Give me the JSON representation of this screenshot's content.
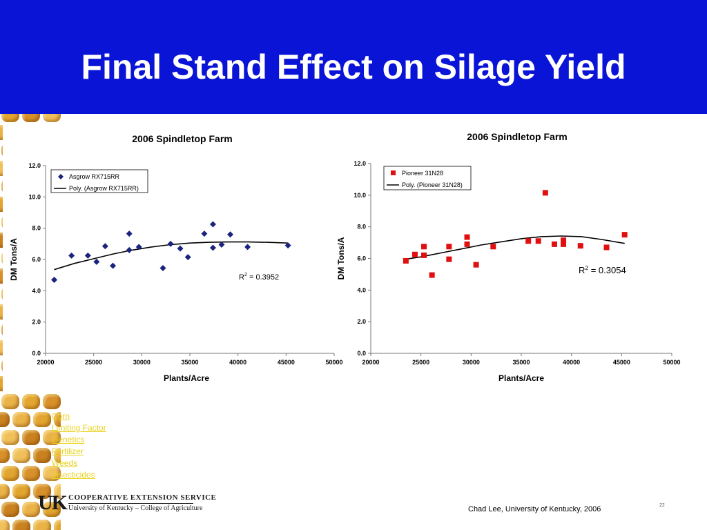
{
  "slide": {
    "title": "Final Stand Effect on Silage Yield",
    "credit": "Chad Lee, University of Kentucky, 2006",
    "page_number": "22",
    "header_color": "#0a14d6"
  },
  "nav": {
    "links": [
      "Corn",
      "Limiting Factor",
      "Genetics",
      "Fertilizer",
      "Weeds",
      "Insecticides"
    ],
    "link_color": "#e8d21a"
  },
  "logo": {
    "mark": "UK",
    "line1": "COOPERATIVE EXTENSION SERVICE",
    "line2": "University of Kentucky – College of Agriculture"
  },
  "chart_data": [
    {
      "type": "scatter",
      "title": "2006 Spindletop Farm",
      "xlabel": "Plants/Acre",
      "ylabel": "DM Tons/A",
      "xlim": [
        20000,
        50000
      ],
      "ylim": [
        0,
        12
      ],
      "x_ticks": [
        "20000",
        "25000",
        "30000",
        "35000",
        "40000",
        "45000",
        "50000"
      ],
      "y_ticks": [
        "0.0",
        "2.0",
        "4.0",
        "6.0",
        "8.0",
        "10.0",
        "12.0"
      ],
      "grid": false,
      "legend_position": "top-left",
      "r2_label": "R",
      "r2_sup": "2",
      "r2_value": " = 0.3952",
      "series": [
        {
          "name": "Asgrow RX715RR",
          "marker": "diamond",
          "color": "#1a237e",
          "points": [
            [
              20900,
              4.7
            ],
            [
              22700,
              6.25
            ],
            [
              24400,
              6.25
            ],
            [
              25300,
              5.85
            ],
            [
              26200,
              6.85
            ],
            [
              27000,
              5.6
            ],
            [
              28700,
              7.65
            ],
            [
              28700,
              6.6
            ],
            [
              29700,
              6.8
            ],
            [
              32200,
              5.45
            ],
            [
              33000,
              7.0
            ],
            [
              34000,
              6.7
            ],
            [
              34800,
              6.15
            ],
            [
              36500,
              7.65
            ],
            [
              37400,
              8.25
            ],
            [
              37400,
              6.75
            ],
            [
              38300,
              6.95
            ],
            [
              39200,
              7.6
            ],
            [
              41000,
              6.8
            ],
            [
              45200,
              6.9
            ]
          ]
        },
        {
          "name": "Poly. (Asgrow RX715RR)",
          "type": "line",
          "color": "#000000",
          "points": [
            [
              20900,
              5.35
            ],
            [
              23000,
              5.75
            ],
            [
              25000,
              6.05
            ],
            [
              27000,
              6.35
            ],
            [
              29000,
              6.6
            ],
            [
              31000,
              6.8
            ],
            [
              33000,
              6.95
            ],
            [
              35000,
              7.05
            ],
            [
              37000,
              7.1
            ],
            [
              39000,
              7.12
            ],
            [
              41000,
              7.12
            ],
            [
              43000,
              7.1
            ],
            [
              45200,
              7.05
            ]
          ]
        }
      ]
    },
    {
      "type": "scatter",
      "title": "2006 Spindletop Farm",
      "xlabel": "Plants/Acre",
      "ylabel": "DM Tons/A",
      "xlim": [
        20000,
        50000
      ],
      "ylim": [
        0,
        12
      ],
      "x_ticks": [
        "20000",
        "25000",
        "30000",
        "35000",
        "40000",
        "45000",
        "50000"
      ],
      "y_ticks": [
        "0.0",
        "2.0",
        "4.0",
        "6.0",
        "8.0",
        "10.0",
        "12.0"
      ],
      "grid": false,
      "legend_position": "top-left",
      "r2_label": "R",
      "r2_sup": "2",
      "r2_value": " = 0.3054",
      "series": [
        {
          "name": "Pioneer 31N28",
          "marker": "square",
          "color": "#e01010",
          "points": [
            [
              23500,
              5.85
            ],
            [
              24400,
              6.25
            ],
            [
              25300,
              6.75
            ],
            [
              25300,
              6.2
            ],
            [
              26100,
              4.95
            ],
            [
              27800,
              6.75
            ],
            [
              27800,
              5.95
            ],
            [
              29600,
              7.35
            ],
            [
              29600,
              6.9
            ],
            [
              30500,
              5.6
            ],
            [
              32200,
              6.75
            ],
            [
              35700,
              7.1
            ],
            [
              36700,
              7.1
            ],
            [
              37400,
              10.15
            ],
            [
              38300,
              6.9
            ],
            [
              39200,
              7.15
            ],
            [
              39200,
              6.9
            ],
            [
              40900,
              6.8
            ],
            [
              43500,
              6.7
            ],
            [
              45300,
              7.5
            ]
          ]
        },
        {
          "name": "Poly. (Pioneer 31N28)",
          "type": "line",
          "color": "#000000",
          "points": [
            [
              23500,
              5.95
            ],
            [
              25000,
              6.1
            ],
            [
              27000,
              6.35
            ],
            [
              29000,
              6.6
            ],
            [
              31000,
              6.85
            ],
            [
              33000,
              7.05
            ],
            [
              35000,
              7.25
            ],
            [
              37000,
              7.38
            ],
            [
              39000,
              7.42
            ],
            [
              41000,
              7.38
            ],
            [
              43000,
              7.2
            ],
            [
              45300,
              6.95
            ]
          ]
        }
      ]
    }
  ]
}
